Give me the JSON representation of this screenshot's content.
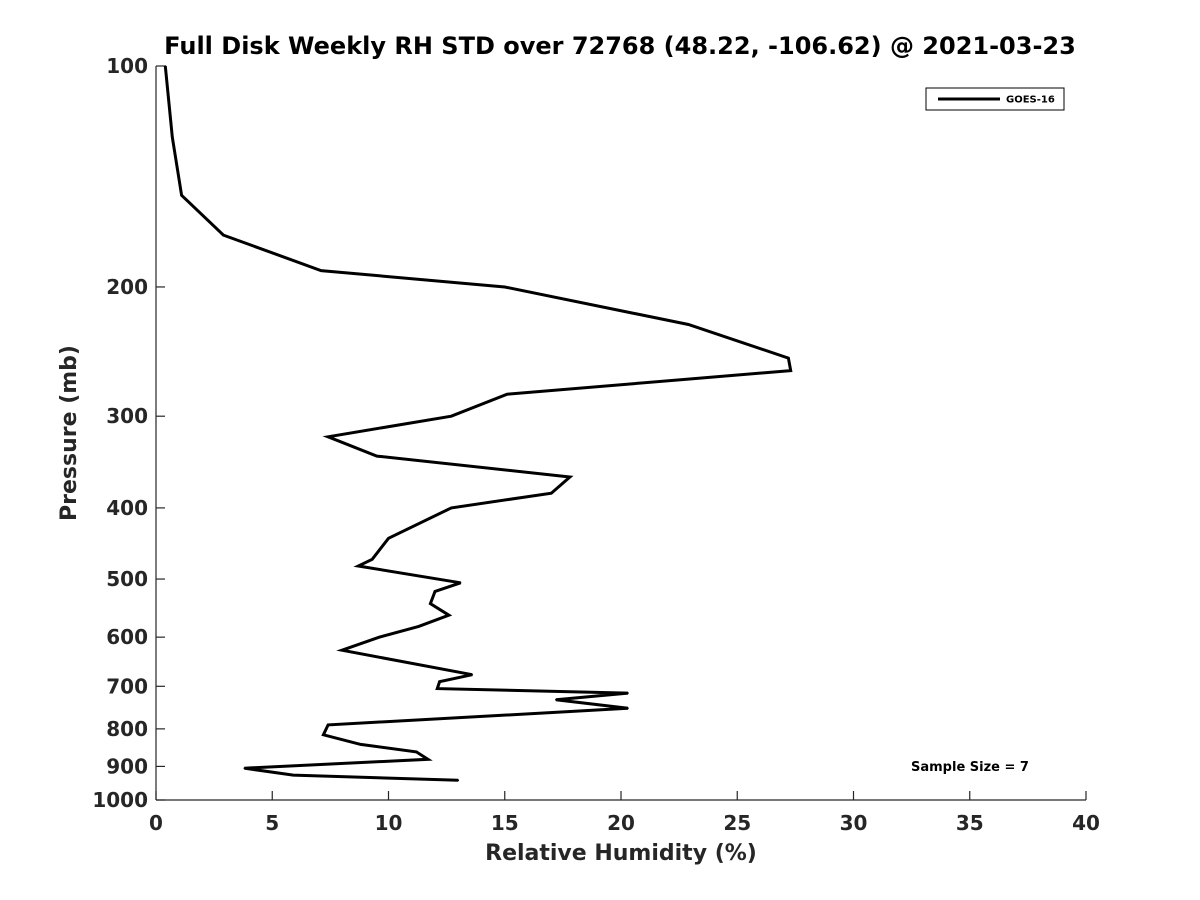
{
  "chart_data": {
    "type": "line",
    "title": "Full Disk Weekly RH STD over 72768 (48.22, -106.62) @ 2021-03-23",
    "xlabel": "Relative Humidity (%)",
    "ylabel": "Pressure (mb)",
    "xlim": [
      0,
      40
    ],
    "ylim": [
      100,
      1000
    ],
    "yscale": "log",
    "ydirection": "reverse",
    "xticks": [
      0,
      5,
      10,
      15,
      20,
      25,
      30,
      35,
      40
    ],
    "xtick_labels": [
      "0",
      "5",
      "10",
      "15",
      "20",
      "25",
      "30",
      "35",
      "40"
    ],
    "yticks": [
      100,
      200,
      300,
      400,
      500,
      600,
      700,
      800,
      900,
      1000
    ],
    "ytick_labels": [
      "100",
      "200",
      "300",
      "400",
      "500",
      "600",
      "700",
      "800",
      "900",
      "1000"
    ],
    "legend": {
      "position": "top-right",
      "entries": [
        "GOES-16"
      ]
    },
    "annotation": "Sample Size = 7",
    "series": [
      {
        "name": "GOES-16",
        "color": "#000000",
        "points": [
          [
            0.4,
            100
          ],
          [
            0.7,
            125
          ],
          [
            1.1,
            150
          ],
          [
            2.9,
            170
          ],
          [
            7.1,
            190
          ],
          [
            15.0,
            200
          ],
          [
            22.9,
            225
          ],
          [
            27.2,
            250
          ],
          [
            27.3,
            260
          ],
          [
            15.1,
            280
          ],
          [
            12.7,
            300
          ],
          [
            7.4,
            320
          ],
          [
            9.5,
            340
          ],
          [
            17.8,
            363
          ],
          [
            17.0,
            382
          ],
          [
            12.7,
            400
          ],
          [
            10.0,
            440
          ],
          [
            9.3,
            470
          ],
          [
            8.7,
            480
          ],
          [
            13.1,
            506
          ],
          [
            12.0,
            520
          ],
          [
            11.8,
            540
          ],
          [
            12.6,
            560
          ],
          [
            11.3,
            580
          ],
          [
            9.6,
            600
          ],
          [
            8.0,
            625
          ],
          [
            13.6,
            675
          ],
          [
            12.2,
            690
          ],
          [
            12.1,
            705
          ],
          [
            20.3,
            715
          ],
          [
            17.2,
            730
          ],
          [
            20.3,
            750
          ],
          [
            7.4,
            790
          ],
          [
            7.2,
            815
          ],
          [
            8.8,
            840
          ],
          [
            11.2,
            860
          ],
          [
            11.7,
            880
          ],
          [
            3.8,
            905
          ],
          [
            5.9,
            925
          ],
          [
            13.0,
            940
          ]
        ]
      }
    ]
  }
}
